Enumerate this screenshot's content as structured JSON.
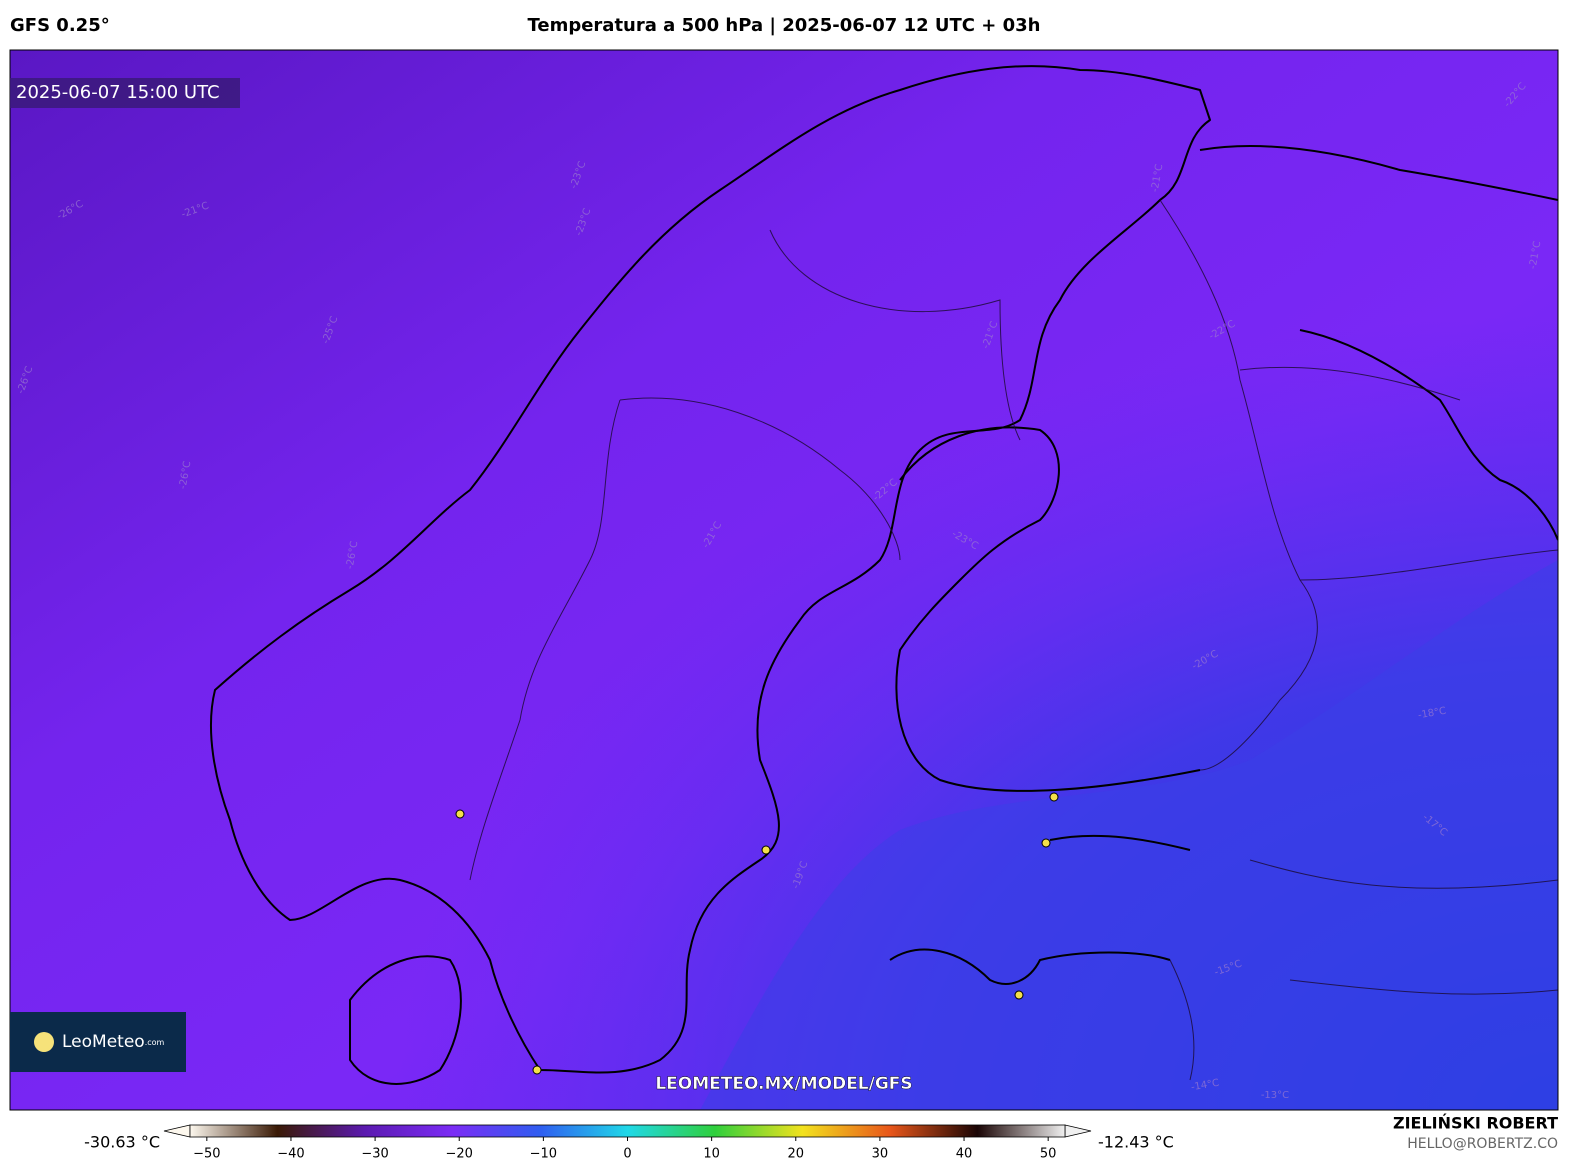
{
  "header": {
    "model": "GFS 0.25°",
    "title": "Temperatura a 500 hPa | 2025-06-07 12 UTC + 03h"
  },
  "map": {
    "timestamp": "2025-06-07 15:00 UTC",
    "logo": {
      "name": "LeoMeteo",
      "suffix": ".com"
    },
    "watermark": "LEOMETEO.MX/MODEL/GFS",
    "contour_labels": [
      "-26°C",
      "-21°C",
      "-23°C",
      "-23°C",
      "-25°C",
      "-26°C",
      "-26°C",
      "-26°C",
      "-21°C",
      "-21°C",
      "-21°C",
      "-22°C",
      "-22°C",
      "-23°C",
      "-21°C",
      "-20°C",
      "-18°C",
      "-17°C",
      "-19°C",
      "-15°C",
      "-14°C",
      "-13°C",
      "-22°C"
    ]
  },
  "colorbar": {
    "min_label": "-30.63 °C",
    "max_label": "-12.43 °C",
    "lim": [
      -52,
      52
    ],
    "colors": [
      "#fdf8ee",
      "#3a1a05",
      "#5b1ab0",
      "#7b2cf5",
      "#2f5df0",
      "#20d8e8",
      "#2fcf3c",
      "#f2e21e",
      "#e8561a",
      "#1a0505",
      "#f0f0f0"
    ],
    "ticks": [
      {
        "value": -50,
        "label": "−50"
      },
      {
        "value": -40,
        "label": "−40"
      },
      {
        "value": -30,
        "label": "−30"
      },
      {
        "value": -20,
        "label": "−20"
      },
      {
        "value": -10,
        "label": "−10"
      },
      0,
      10,
      20,
      30,
      40,
      50
    ]
  },
  "footer": {
    "author": "ZIELIŃSKI ROBERT",
    "email": "HELLO@ROBERTZ.CO"
  }
}
